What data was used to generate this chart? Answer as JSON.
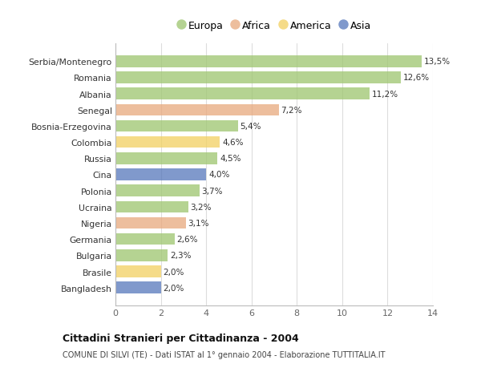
{
  "countries": [
    "Bangladesh",
    "Brasile",
    "Bulgaria",
    "Germania",
    "Nigeria",
    "Ucraina",
    "Polonia",
    "Cina",
    "Russia",
    "Colombia",
    "Bosnia-Erzegovina",
    "Senegal",
    "Albania",
    "Romania",
    "Serbia/Montenegro"
  ],
  "values": [
    2.0,
    2.0,
    2.3,
    2.6,
    3.1,
    3.2,
    3.7,
    4.0,
    4.5,
    4.6,
    5.4,
    7.2,
    11.2,
    12.6,
    13.5
  ],
  "continents": [
    "Asia",
    "America",
    "Europa",
    "Europa",
    "Africa",
    "Europa",
    "Europa",
    "Asia",
    "Europa",
    "America",
    "Europa",
    "Africa",
    "Europa",
    "Europa",
    "Europa"
  ],
  "colors": {
    "Europa": "#9dc56e",
    "Africa": "#e8a87c",
    "America": "#f2d060",
    "Asia": "#5577bb"
  },
  "legend_order": [
    "Europa",
    "Africa",
    "America",
    "Asia"
  ],
  "labels": [
    "2,0%",
    "2,0%",
    "2,3%",
    "2,6%",
    "3,1%",
    "3,2%",
    "3,7%",
    "4,0%",
    "4,5%",
    "4,6%",
    "5,4%",
    "7,2%",
    "11,2%",
    "12,6%",
    "13,5%"
  ],
  "title": "Cittadini Stranieri per Cittadinanza - 2004",
  "subtitle": "COMUNE DI SILVI (TE) - Dati ISTAT al 1° gennaio 2004 - Elaborazione TUTTITALIA.IT",
  "xlim": [
    0,
    14
  ],
  "xticks": [
    0,
    2,
    4,
    6,
    8,
    10,
    12,
    14
  ],
  "background_color": "#ffffff",
  "bar_height": 0.72,
  "bar_alpha": 0.75
}
